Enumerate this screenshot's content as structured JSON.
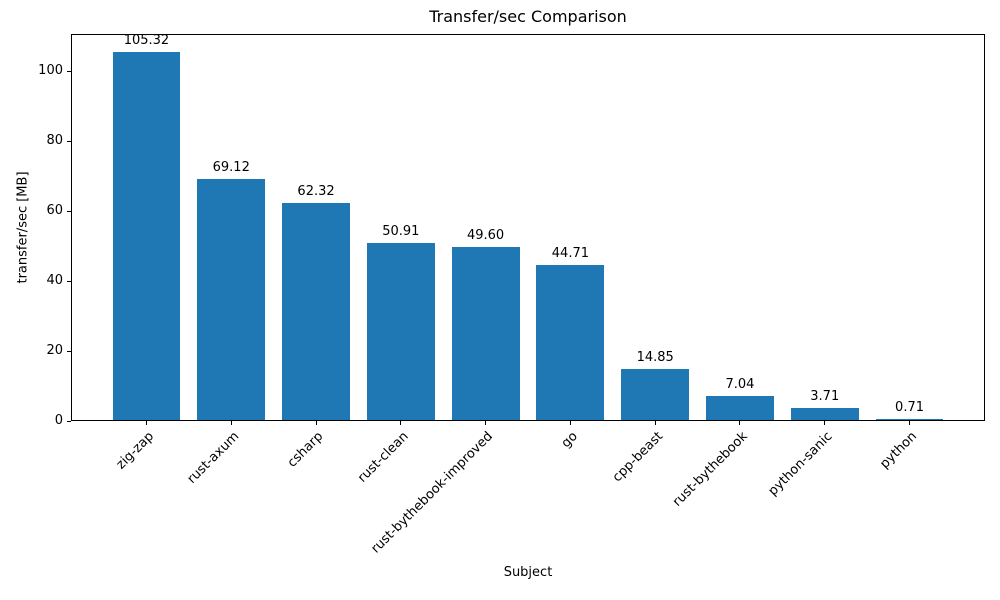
{
  "chart_data": {
    "type": "bar",
    "title": "Transfer/sec Comparison",
    "xlabel": "Subject",
    "ylabel": "transfer/sec [MB]",
    "categories": [
      "zig-zap",
      "rust-axum",
      "csharp",
      "rust-clean",
      "rust-bythebook-improved",
      "go",
      "cpp-beast",
      "rust-bythebook",
      "python-sanic",
      "python"
    ],
    "values": [
      105.32,
      69.12,
      62.32,
      50.91,
      49.6,
      44.71,
      14.85,
      7.04,
      3.71,
      0.71
    ],
    "bar_labels": [
      "105.32",
      "69.12",
      "62.32",
      "50.91",
      "49.60",
      "44.71",
      "14.85",
      "7.04",
      "3.71",
      "0.71"
    ],
    "yticks": [
      0,
      20,
      40,
      60,
      80,
      100
    ],
    "ylim": [
      0,
      110.59
    ],
    "xlim": [
      -0.89,
      9.89
    ],
    "bar_width_units": 0.8,
    "bar_color": "#1f77b4",
    "axis_color": "#000000",
    "background_color": "#ffffff",
    "grid": false,
    "legend_position": "none",
    "xtick_rotation_deg": 45
  }
}
